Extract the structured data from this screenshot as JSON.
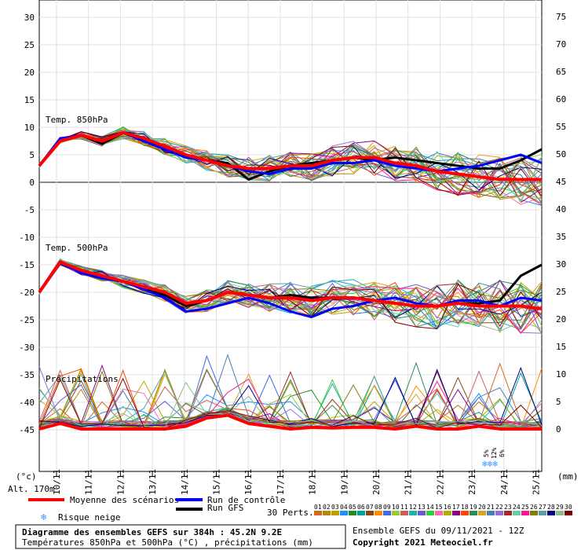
{
  "chart_data": {
    "type": "line",
    "left_axis": {
      "unit_label": "(°c)",
      "ticks": [
        30,
        25,
        20,
        15,
        10,
        5,
        0,
        -5,
        -10,
        -15,
        -20,
        -25,
        -30,
        -35,
        -40,
        -45
      ],
      "range": [
        -45,
        30
      ]
    },
    "right_axis": {
      "unit_label": "(mm)",
      "ticks": [
        75,
        70,
        65,
        60,
        55,
        50,
        45,
        40,
        35,
        30,
        25,
        20,
        15,
        10,
        5,
        0
      ],
      "range": [
        0,
        75
      ]
    },
    "x_categories": [
      "10/11",
      "11/11",
      "12/11",
      "13/11",
      "14/11",
      "15/11",
      "16/11",
      "17/11",
      "18/11",
      "19/11",
      "20/11",
      "21/11",
      "22/11",
      "23/11",
      "24/11",
      "25/11"
    ],
    "section_labels": [
      "Temp. 850hPa",
      "Temp. 500hPa",
      "Précipitations"
    ],
    "altitude_label": "Alt. 170m",
    "snow_risk_percent": [
      "5%",
      "12%",
      "6%"
    ],
    "mean_850": [
      3,
      7.5,
      8.5,
      7.5,
      9,
      8,
      6.5,
      5,
      4,
      3,
      2.5,
      2.5,
      3,
      3,
      4,
      4.5,
      4.5,
      3.5,
      3,
      2,
      1.5,
      1,
      0.5,
      0.5,
      0.5
    ],
    "control_850": [
      3,
      8,
      8.5,
      7.5,
      9,
      7.5,
      6,
      4.5,
      4,
      3,
      2,
      1.5,
      2.5,
      2.5,
      3.5,
      3.5,
      4,
      3,
      2.5,
      2,
      2.5,
      3,
      4,
      5,
      3.5
    ],
    "gfs_850": [
      3,
      7.5,
      8.5,
      7,
      9,
      7.5,
      6,
      5,
      4,
      3.5,
      0.5,
      2,
      3,
      3.5,
      4,
      4.5,
      4,
      4.5,
      4,
      3.5,
      3,
      2.5,
      2.5,
      4,
      6
    ],
    "mean_500": [
      -20,
      -14.5,
      -16,
      -17,
      -18,
      -19,
      -20,
      -22,
      -21.5,
      -20,
      -20.5,
      -21,
      -21,
      -21.5,
      -21,
      -21,
      -21.5,
      -22,
      -22.5,
      -22.5,
      -22,
      -22.5,
      -22.5,
      -22.5,
      -23
    ],
    "control_500": [
      -20,
      -14.5,
      -16.5,
      -17.5,
      -18,
      -19.5,
      -21,
      -23.5,
      -23,
      -22,
      -21,
      -22,
      -23.5,
      -24.5,
      -23,
      -22.5,
      -21.5,
      -21,
      -22,
      -22.5,
      -21.5,
      -21.5,
      -22.5,
      -21,
      -21.5
    ],
    "gfs_500": [
      -20,
      -14.5,
      -16,
      -17,
      -18,
      -19.5,
      -20.5,
      -22.5,
      -21.5,
      -20,
      -20.5,
      -21,
      -20.5,
      -21,
      -21,
      -21,
      -21.5,
      -22,
      -22.5,
      -22.5,
      -22,
      -22,
      -21.5,
      -17,
      -15
    ],
    "mean_precip": [
      0,
      1,
      0,
      0,
      0,
      0,
      0,
      0.5,
      2,
      2.5,
      1,
      0.5,
      0,
      0.3,
      0.2,
      0.3,
      0.3,
      0,
      0.5,
      0,
      0,
      0.5,
      0,
      0,
      0
    ]
  },
  "legend": {
    "mean": "Moyenne des scénarios",
    "control": "Run de contrôle",
    "gfs": "Run GFS",
    "perts_label": "30 Perts.",
    "snow": "Risque neige"
  },
  "pert_numbers": [
    "01",
    "02",
    "03",
    "04",
    "05",
    "06",
    "07",
    "08",
    "09",
    "10",
    "11",
    "12",
    "13",
    "14",
    "15",
    "16",
    "17",
    "18",
    "19",
    "20",
    "21",
    "22",
    "23",
    "24",
    "25",
    "26",
    "27",
    "28",
    "29",
    "30"
  ],
  "pert_colors": [
    "#d2691e",
    "#b8860b",
    "#c0a000",
    "#1e90ff",
    "#228b22",
    "#00a0a0",
    "#8b4513",
    "#ff8c00",
    "#4169e1",
    "#9acd32",
    "#cd5c5c",
    "#20b2aa",
    "#6a5acd",
    "#32cd32",
    "#ff69b4",
    "#b0b000",
    "#8b008b",
    "#ff4500",
    "#2e8b57",
    "#daa520",
    "#4682b4",
    "#9370db",
    "#a52a2a",
    "#66cdaa",
    "#ff1493",
    "#808000",
    "#5f9ea0",
    "#000080",
    "#8fbc8f",
    "#800000"
  ],
  "footer": {
    "title": "Diagramme des ensembles GEFS sur 384h : 45.2N 9.2E",
    "subtitle": "Températures 850hPa et 500hPa (°C) , précipitations (mm)",
    "run_info": "Ensemble GEFS du 09/11/2021 - 12Z",
    "copyright": "Copyright 2021 Meteociel.fr"
  }
}
